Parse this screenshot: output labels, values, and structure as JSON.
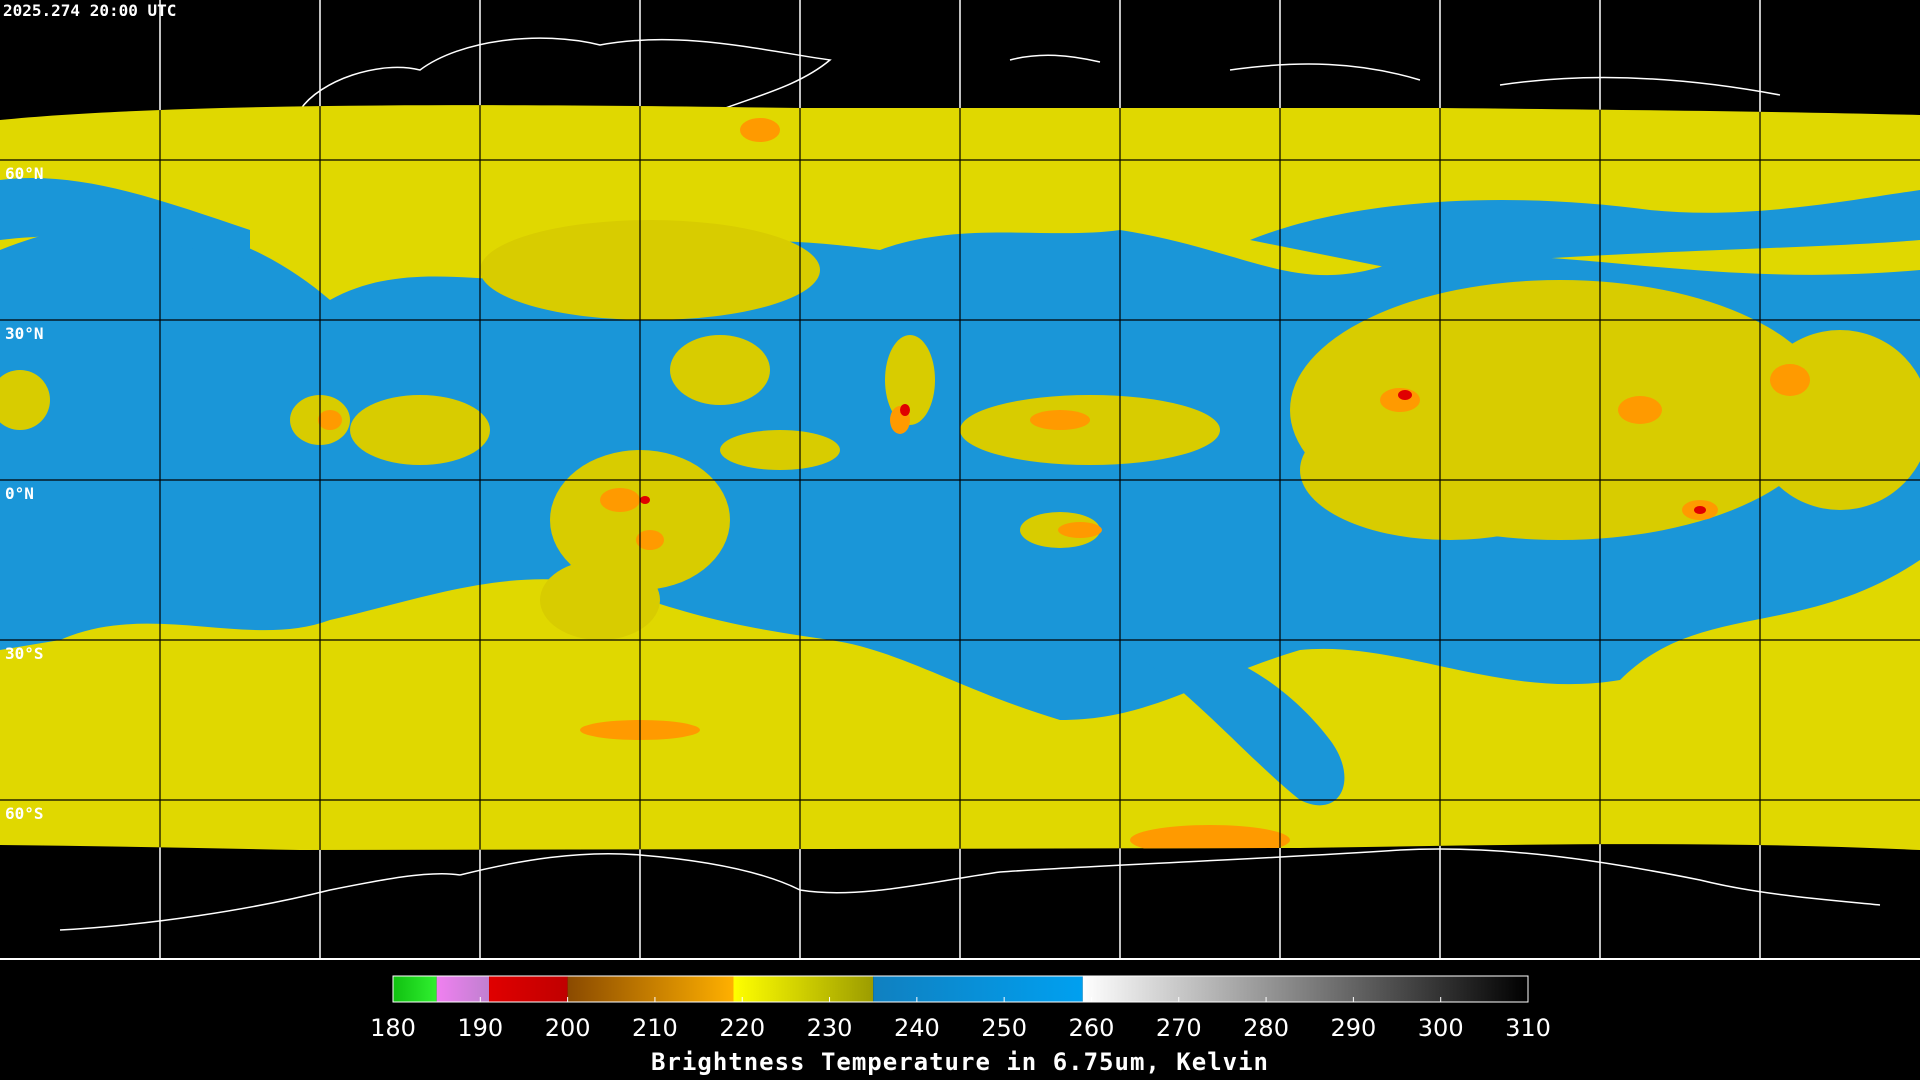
{
  "header": {
    "timestamp": "2025.274 20:00 UTC"
  },
  "map": {
    "latitude_labels": [
      "60°N",
      "30°N",
      "0°N",
      "30°S",
      "60°S"
    ]
  },
  "colorbar": {
    "ticks": [
      180,
      190,
      200,
      210,
      220,
      230,
      240,
      250,
      260,
      270,
      280,
      290,
      300,
      310
    ],
    "label": "Brightness Temperature in 6.75um, Kelvin",
    "segments": [
      {
        "from": 180,
        "to": 185,
        "colors": [
          "#10c010",
          "#30f030"
        ]
      },
      {
        "from": 185,
        "to": 191,
        "colors": [
          "#f080f0",
          "#c080d0"
        ]
      },
      {
        "from": 191,
        "to": 200,
        "colors": [
          "#e00000",
          "#c00000"
        ]
      },
      {
        "from": 200,
        "to": 219,
        "colors": [
          "#8a4a00",
          "#ffb000"
        ]
      },
      {
        "from": 219,
        "to": 235,
        "colors": [
          "#ffff00",
          "#9c9c00"
        ]
      },
      {
        "from": 235,
        "to": 259,
        "colors": [
          "#1080c0",
          "#00a0f0"
        ]
      },
      {
        "from": 259,
        "to": 310,
        "colors": [
          "#ffffff",
          "#000000"
        ]
      }
    ]
  }
}
